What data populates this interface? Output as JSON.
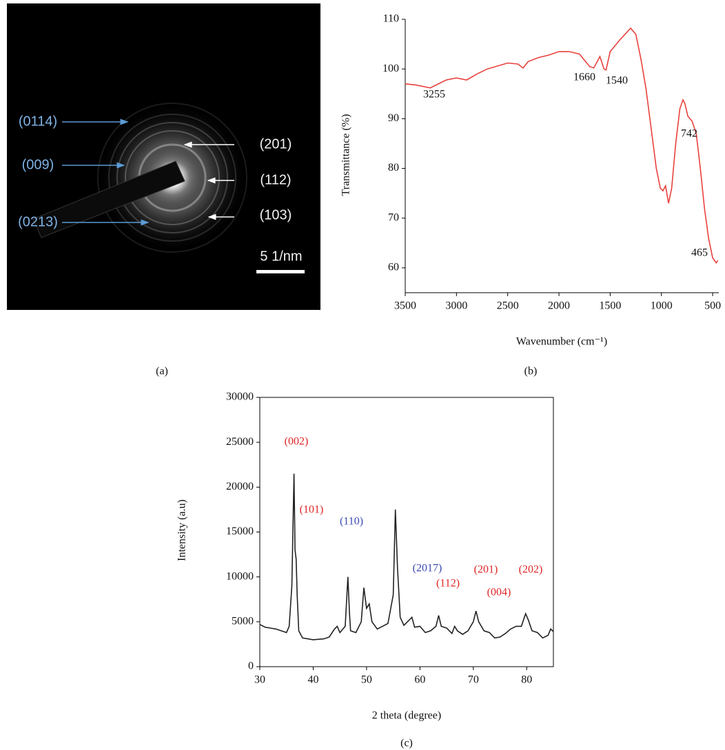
{
  "diffraction_pattern": {
    "labels": [
      "(0114)",
      "(009)",
      "(0213)",
      "(201)",
      "(112)",
      "(103)"
    ],
    "scale_bar": "5 1/nm",
    "caption": "(a)"
  },
  "chart_data": [
    {
      "type": "line",
      "caption": "(b)",
      "x_label": "Wavenumber (cm⁻¹)",
      "y_label": "Transmittance (%)",
      "color": "#e8413c",
      "x": [
        3500,
        3400,
        3255,
        3100,
        3000,
        2900,
        2800,
        2700,
        2500,
        2400,
        2350,
        2300,
        2200,
        2100,
        2000,
        1900,
        1800,
        1700,
        1660,
        1600,
        1560,
        1540,
        1500,
        1400,
        1300,
        1250,
        1200,
        1150,
        1100,
        1050,
        1010,
        985,
        960,
        930,
        900,
        860,
        820,
        790,
        770,
        742,
        700,
        660,
        620,
        580,
        540,
        500,
        465,
        450
      ],
      "values": [
        97.0,
        96.8,
        96.2,
        97.8,
        98.2,
        97.8,
        99.0,
        100.0,
        101.2,
        101.0,
        100.2,
        101.5,
        102.3,
        102.8,
        103.5,
        103.5,
        103.0,
        100.5,
        100.2,
        102.5,
        100.0,
        99.8,
        103.5,
        106.0,
        108.2,
        107.0,
        102.0,
        96.0,
        88.0,
        80.0,
        76.0,
        75.5,
        76.5,
        73.0,
        76.0,
        85.0,
        92.0,
        93.8,
        93.0,
        90.5,
        89.5,
        87.0,
        80.0,
        72.0,
        66.0,
        62.0,
        61.0,
        61.5
      ],
      "xlim": [
        3500,
        440
      ],
      "xticks": [
        3500,
        3000,
        2500,
        2000,
        1500,
        1000,
        500
      ],
      "ylim": [
        55,
        110
      ],
      "yticks": [
        60,
        70,
        80,
        90,
        100,
        110
      ],
      "grid": false,
      "annotations": [
        {
          "text": "3255"
        },
        {
          "text": "1660"
        },
        {
          "text": "1540"
        },
        {
          "text": "742"
        },
        {
          "text": "465"
        }
      ]
    },
    {
      "type": "line",
      "caption": "(c)",
      "x_label": "2 theta (degree)",
      "y_label": "Intensity (a.u)",
      "color": "#222222",
      "x": [
        30,
        31,
        32,
        33,
        34,
        35,
        35.5,
        36,
        36.4,
        36.6,
        36.8,
        37,
        37.3,
        38,
        40,
        42,
        43,
        44,
        44.5,
        45,
        46,
        46.5,
        46.8,
        47,
        48,
        49,
        49.5,
        50,
        50.5,
        51,
        52,
        54,
        55,
        55.4,
        55.8,
        56.3,
        57,
        58,
        58.5,
        59,
        60,
        61,
        62,
        63,
        63.5,
        64,
        65,
        66,
        66.5,
        67,
        68,
        69,
        70,
        70.5,
        71,
        72,
        73,
        74,
        75,
        76,
        77,
        78,
        79,
        79.8,
        80.3,
        81,
        82,
        83,
        84,
        84.5,
        85
      ],
      "values": [
        4700,
        4400,
        4300,
        4200,
        4000,
        3800,
        4500,
        9000,
        21500,
        13000,
        12000,
        8000,
        4000,
        3200,
        3000,
        3100,
        3300,
        4200,
        4500,
        3800,
        4500,
        10000,
        6000,
        4000,
        3800,
        5000,
        8800,
        6500,
        7000,
        5000,
        4200,
        4800,
        8000,
        17500,
        11000,
        5500,
        4600,
        5200,
        5500,
        4400,
        4500,
        3800,
        4000,
        4500,
        5700,
        4500,
        4300,
        3700,
        4500,
        4000,
        3600,
        4000,
        5000,
        6200,
        5000,
        4000,
        3800,
        3200,
        3300,
        3700,
        4200,
        4500,
        4500,
        5900,
        5200,
        4000,
        3800,
        3200,
        3500,
        4200,
        3900
      ],
      "xlim": [
        30,
        85
      ],
      "xticks": [
        30,
        40,
        50,
        60,
        70,
        80
      ],
      "ylim": [
        0,
        30000
      ],
      "yticks": [
        0,
        5000,
        10000,
        15000,
        20000,
        25000,
        30000
      ],
      "grid": false,
      "annotations": [
        {
          "text": "(002)",
          "color": "#e02424"
        },
        {
          "text": "(101)",
          "color": "#e02424"
        },
        {
          "text": "(110)",
          "color": "#3a48b0"
        },
        {
          "text": "(2017)",
          "color": "#3a48b0"
        },
        {
          "text": "(112)",
          "color": "#e02424"
        },
        {
          "text": "(201)",
          "color": "#e02424"
        },
        {
          "text": "(004)",
          "color": "#e02424"
        },
        {
          "text": "(202)",
          "color": "#e02424"
        }
      ]
    }
  ]
}
